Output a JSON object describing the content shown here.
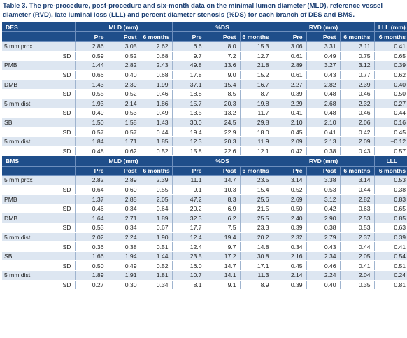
{
  "caption": "Table 3. The pre-procedure, post-procedure and six-month data on the minimal lumen diameter (MLD), reference vessel diameter (RVD), late luminal loss (LLL) and percent diameter stenosis (%DS) for each branch of DES and BMS.",
  "column_groups": {
    "mld": "MLD (mm)",
    "ds": "%DS",
    "rvd": "RVD (mm)",
    "lll": "LLL (mm)"
  },
  "sub_headers": {
    "pre": "Pre",
    "post": "Post",
    "six_months": "6 months"
  },
  "des": {
    "label": "DES",
    "lll_header": "LLL (mm)",
    "rows": [
      {
        "name": "5 mm prox",
        "values": [
          "2.86",
          "3.05",
          "2.62",
          "6.6",
          "8.0",
          "15.3",
          "3.06",
          "3.31",
          "3.11",
          "0.41"
        ]
      },
      {
        "name": "SD",
        "values": [
          "0.59",
          "0.52",
          "0.68",
          "9.7",
          "7.2",
          "12.7",
          "0.61",
          "0.49",
          "0.75",
          "0.65"
        ]
      },
      {
        "name": "PMB",
        "values": [
          "1.44",
          "2.82",
          "2.43",
          "49.8",
          "13.6",
          "21.8",
          "2.89",
          "3.27",
          "3.12",
          "0.39"
        ]
      },
      {
        "name": "SD",
        "values": [
          "0.66",
          "0.40",
          "0.68",
          "17.8",
          "9.0",
          "15.2",
          "0.61",
          "0.43",
          "0.77",
          "0.62"
        ]
      },
      {
        "name": "DMB",
        "values": [
          "1.43",
          "2.39",
          "1.99",
          "37.1",
          "15.4",
          "16.7",
          "2.27",
          "2.82",
          "2.39",
          "0.40"
        ]
      },
      {
        "name": "SD",
        "values": [
          "0.55",
          "0.52",
          "0.46",
          "18.8",
          "8.5",
          "8.7",
          "0.39",
          "0.48",
          "0.46",
          "0.50"
        ]
      },
      {
        "name": "5 mm dist",
        "values": [
          "1.93",
          "2.14",
          "1.86",
          "15.7",
          "20.3",
          "19.8",
          "2.29",
          "2.68",
          "2.32",
          "0.27"
        ]
      },
      {
        "name": "SD",
        "values": [
          "0.49",
          "0.53",
          "0.49",
          "13.5",
          "13.2",
          "11.7",
          "0.41",
          "0.48",
          "0.46",
          "0.44"
        ]
      },
      {
        "name": "SB",
        "values": [
          "1.50",
          "1.58",
          "1.43",
          "30.0",
          "24.5",
          "29.8",
          "2.10",
          "2.10",
          "2.06",
          "0.16"
        ]
      },
      {
        "name": "SD",
        "values": [
          "0.57",
          "0.57",
          "0.44",
          "19.4",
          "22.9",
          "18.0",
          "0.45",
          "0.41",
          "0.42",
          "0.45"
        ]
      },
      {
        "name": "5 mm dist",
        "values": [
          "1.84",
          "1.71",
          "1.85",
          "12.3",
          "20.3",
          "11.9",
          "2.09",
          "2.13",
          "2.09",
          "−0.12"
        ]
      },
      {
        "name": "SD",
        "values": [
          "0.48",
          "0.62",
          "0.52",
          "15.8",
          "22.6",
          "12.1",
          "0.42",
          "0.38",
          "0.43",
          "0.57"
        ]
      }
    ]
  },
  "bms": {
    "label": "BMS",
    "lll_header": "LLL",
    "rows": [
      {
        "name": "5 mm prox",
        "values": [
          "2.82",
          "2.89",
          "2.39",
          "11.1",
          "14.7",
          "23.5",
          "3.14",
          "3.38",
          "3.14",
          "0.53"
        ]
      },
      {
        "name": "SD",
        "values": [
          "0.64",
          "0.60",
          "0.55",
          "9.1",
          "10.3",
          "15.4",
          "0.52",
          "0.53",
          "0.44",
          "0.38"
        ]
      },
      {
        "name": "PMB",
        "values": [
          "1.37",
          "2.85",
          "2.05",
          "47.2",
          "8.3",
          "25.6",
          "2.69",
          "3.12",
          "2.82",
          "0.83"
        ]
      },
      {
        "name": "SD",
        "values": [
          "0.46",
          "0.34",
          "0.64",
          "20.2",
          "6.9",
          "21.5",
          "0.50",
          "0.42",
          "0.63",
          "0.65"
        ]
      },
      {
        "name": "DMB",
        "values": [
          "1.64",
          "2.71",
          "1.89",
          "32.3",
          "6.2",
          "25.5",
          "2.40",
          "2.90",
          "2.53",
          "0.85"
        ]
      },
      {
        "name": "SD",
        "values": [
          "0.53",
          "0.34",
          "0.67",
          "17.7",
          "7.5",
          "23.3",
          "0.39",
          "0.38",
          "0.53",
          "0.63"
        ]
      },
      {
        "name": "5 mm dist",
        "values": [
          "2.02",
          "2.24",
          "1.90",
          "12.4",
          "19.4",
          "20.2",
          "2.32",
          "2.79",
          "2.37",
          "0.39"
        ]
      },
      {
        "name": "SD",
        "values": [
          "0.36",
          "0.38",
          "0.51",
          "12.4",
          "9.7",
          "14.8",
          "0.34",
          "0.43",
          "0.44",
          "0.41"
        ]
      },
      {
        "name": "SB",
        "values": [
          "1.66",
          "1.94",
          "1.44",
          "23.5",
          "17.2",
          "30.8",
          "2.16",
          "2.34",
          "2.05",
          "0.54"
        ]
      },
      {
        "name": "SD",
        "values": [
          "0.50",
          "0.49",
          "0.52",
          "16.0",
          "14.7",
          "17.1",
          "0.45",
          "0.46",
          "0.41",
          "0.51"
        ]
      },
      {
        "name": "5 mm dist",
        "values": [
          "1.89",
          "1.91",
          "1.81",
          "10.7",
          "14.1",
          "11.3",
          "2.14",
          "2.24",
          "2.04",
          "0.24"
        ]
      },
      {
        "name": "SD",
        "values": [
          "0.27",
          "0.30",
          "0.34",
          "8.1",
          "9.1",
          "8.9",
          "0.39",
          "0.40",
          "0.35",
          "0.81"
        ]
      }
    ]
  },
  "colors": {
    "caption": "#1c3f73",
    "header_bg": "#1f4e8a",
    "stripe": "#dde6f1"
  }
}
